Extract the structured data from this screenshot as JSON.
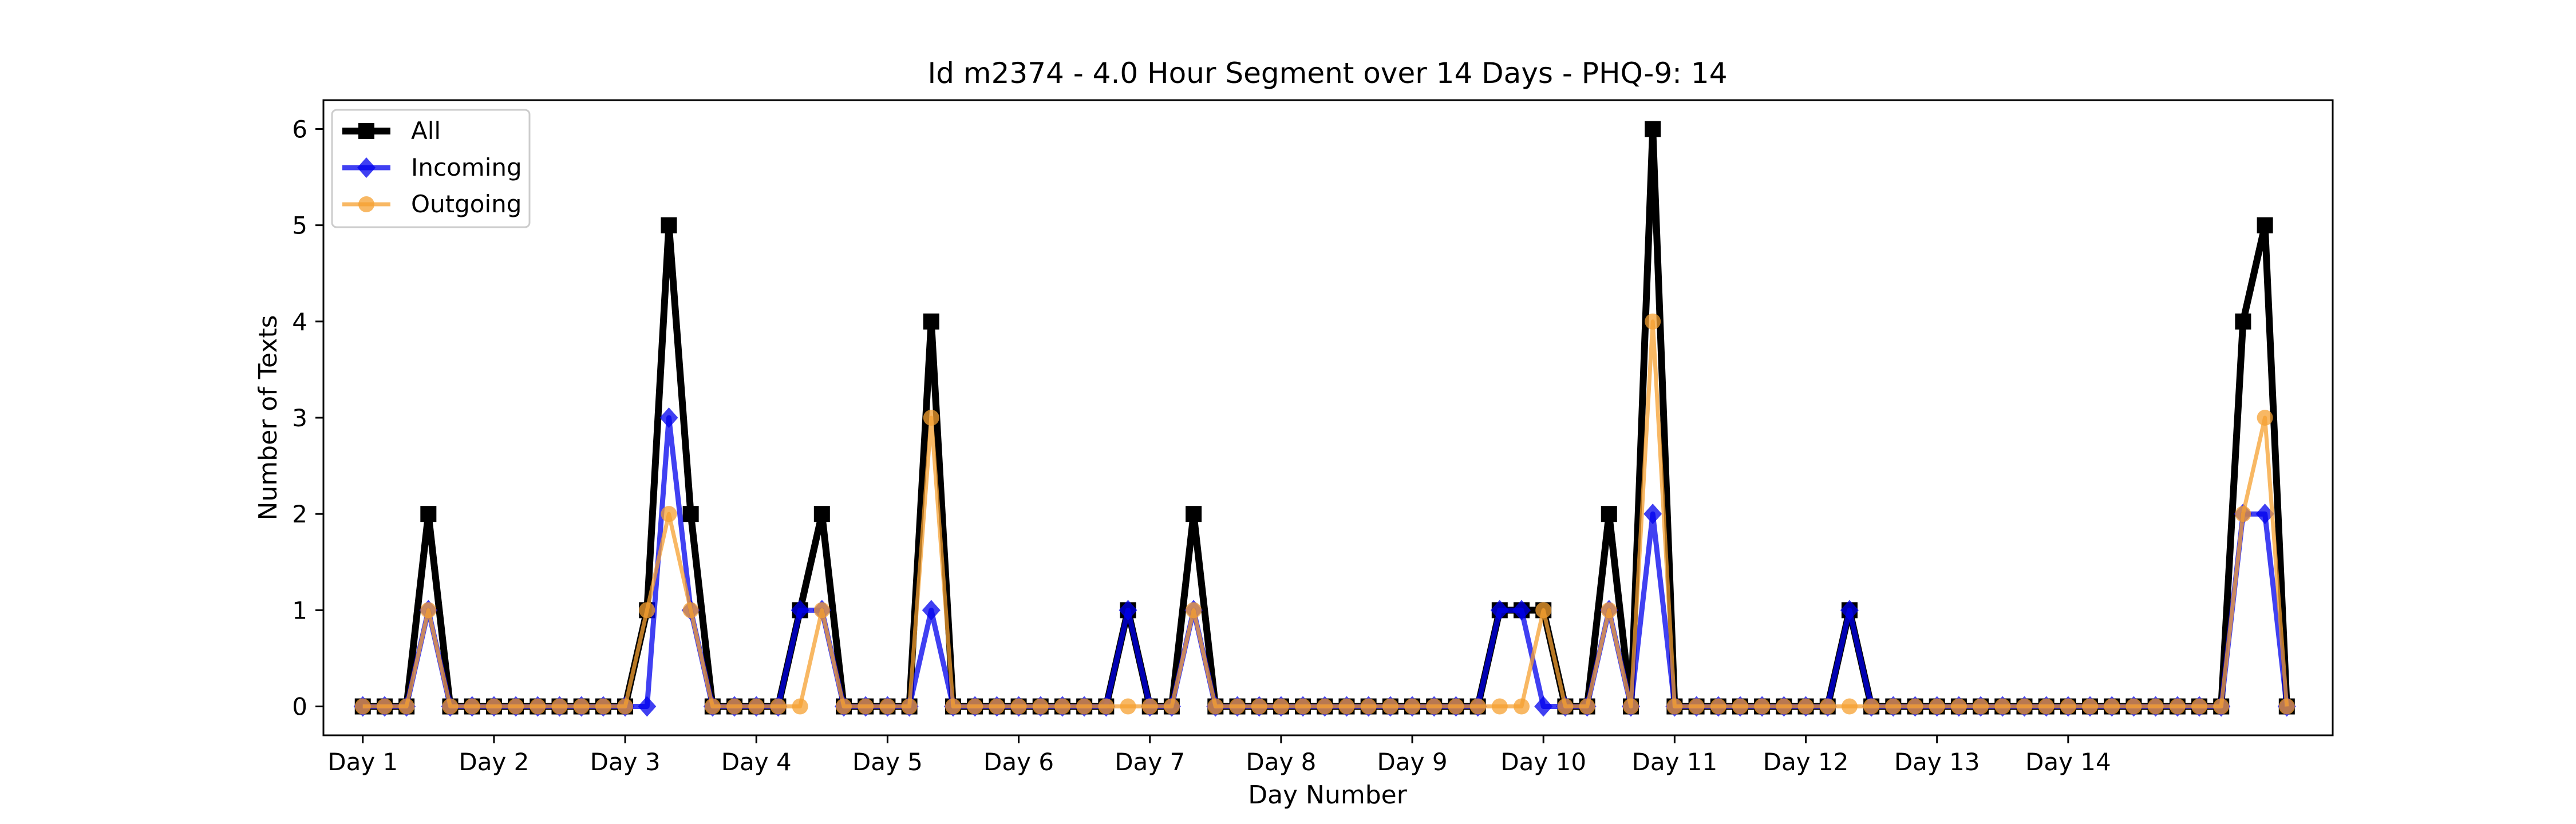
{
  "chart_data": {
    "type": "line",
    "title": "Id m2374 - 4.0 Hour Segment over 14 Days - PHQ-9: 14",
    "xlabel": "Day Number",
    "ylabel": "Number of Texts",
    "x_tick_labels": [
      "Day 1",
      "Day 2",
      "Day 3",
      "Day 4",
      "Day 5",
      "Day 6",
      "Day 7",
      "Day 8",
      "Day 9",
      "Day 10",
      "Day 11",
      "Day 12",
      "Day 13",
      "Day 14"
    ],
    "y_ticks": [
      0,
      1,
      2,
      3,
      4,
      5,
      6
    ],
    "x_range": [
      -1.8,
      90.1
    ],
    "ylim": [
      -0.3,
      6.3
    ],
    "grid": false,
    "legend_position": "top-left",
    "series": [
      {
        "name": "All",
        "color": "#000000",
        "marker": "square",
        "values": [
          0,
          0,
          0,
          2,
          0,
          0,
          0,
          0,
          0,
          0,
          0,
          0,
          0,
          1,
          5,
          2,
          0,
          0,
          0,
          0,
          1,
          2,
          0,
          0,
          0,
          0,
          4,
          0,
          0,
          0,
          0,
          0,
          0,
          0,
          0,
          1,
          0,
          0,
          2,
          0,
          0,
          0,
          0,
          0,
          0,
          0,
          0,
          0,
          0,
          0,
          0,
          0,
          1,
          1,
          1,
          0,
          0,
          2,
          0,
          6,
          0,
          0,
          0,
          0,
          0,
          0,
          0,
          0,
          1,
          0,
          0,
          0,
          0,
          0,
          0,
          0,
          0,
          0,
          0,
          0,
          0,
          0,
          0,
          0,
          0,
          0,
          4,
          5,
          0
        ]
      },
      {
        "name": "Incoming",
        "color": "#0000ee",
        "marker": "diamond",
        "values": [
          0,
          0,
          0,
          1,
          0,
          0,
          0,
          0,
          0,
          0,
          0,
          0,
          0,
          0,
          3,
          1,
          0,
          0,
          0,
          0,
          1,
          1,
          0,
          0,
          0,
          0,
          1,
          0,
          0,
          0,
          0,
          0,
          0,
          0,
          0,
          1,
          0,
          0,
          1,
          0,
          0,
          0,
          0,
          0,
          0,
          0,
          0,
          0,
          0,
          0,
          0,
          0,
          1,
          1,
          0,
          0,
          0,
          1,
          0,
          2,
          0,
          0,
          0,
          0,
          0,
          0,
          0,
          0,
          1,
          0,
          0,
          0,
          0,
          0,
          0,
          0,
          0,
          0,
          0,
          0,
          0,
          0,
          0,
          0,
          0,
          0,
          2,
          2,
          0
        ]
      },
      {
        "name": "Outgoing",
        "color": "#f5a030",
        "marker": "circle",
        "values": [
          0,
          0,
          0,
          1,
          0,
          0,
          0,
          0,
          0,
          0,
          0,
          0,
          0,
          1,
          2,
          1,
          0,
          0,
          0,
          0,
          0,
          1,
          0,
          0,
          0,
          0,
          3,
          0,
          0,
          0,
          0,
          0,
          0,
          0,
          0,
          0,
          0,
          0,
          1,
          0,
          0,
          0,
          0,
          0,
          0,
          0,
          0,
          0,
          0,
          0,
          0,
          0,
          0,
          0,
          1,
          0,
          0,
          1,
          0,
          4,
          0,
          0,
          0,
          0,
          0,
          0,
          0,
          0,
          0,
          0,
          0,
          0,
          0,
          0,
          0,
          0,
          0,
          0,
          0,
          0,
          0,
          0,
          0,
          0,
          0,
          0,
          2,
          3,
          0
        ]
      }
    ]
  }
}
